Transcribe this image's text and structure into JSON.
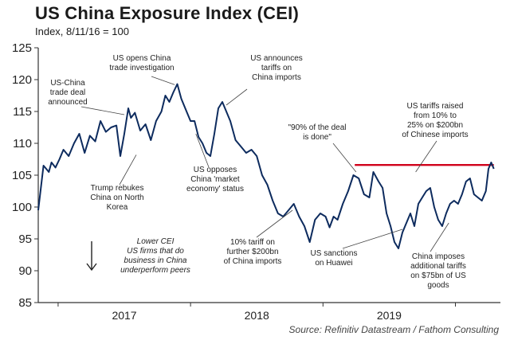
{
  "title": "US China Exposure Index (CEI)",
  "subtitle": "Index, 8/11/16 = 100",
  "source": "Source: Refinitiv Datastream / Fathom Consulting",
  "colors": {
    "series": "#0d2b5e",
    "threshold": "#d0021b",
    "axis": "#333333",
    "text": "#1a1a1a"
  },
  "chart_data": {
    "type": "line",
    "title": "US China Exposure Index (CEI)",
    "ylabel": "Index, 8/11/16 = 100",
    "xlabel": "",
    "ylim": [
      85,
      125
    ],
    "yticks": [
      85,
      90,
      95,
      100,
      105,
      110,
      115,
      120,
      125
    ],
    "xlim": [
      2016.35,
      2019.84
    ],
    "xticks": [
      {
        "label": "2017",
        "x": 2017.0
      },
      {
        "label": "2018",
        "x": 2018.0
      },
      {
        "label": "2019",
        "x": 2019.0
      }
    ],
    "grid": false,
    "series": [
      {
        "name": "CEI",
        "x": [
          2016.35,
          2016.37,
          2016.39,
          2016.41,
          2016.43,
          2016.45,
          2016.48,
          2016.51,
          2016.54,
          2016.58,
          2016.62,
          2016.66,
          2016.7,
          2016.74,
          2016.78,
          2016.82,
          2016.86,
          2016.9,
          2016.94,
          2016.97,
          2017.0,
          2017.03,
          2017.05,
          2017.08,
          2017.12,
          2017.16,
          2017.2,
          2017.24,
          2017.28,
          2017.31,
          2017.34,
          2017.37,
          2017.4,
          2017.43,
          2017.47,
          2017.5,
          2017.53,
          2017.56,
          2017.59,
          2017.62,
          2017.65,
          2017.68,
          2017.71,
          2017.74,
          2017.77,
          2017.8,
          2017.84,
          2017.88,
          2017.92,
          2017.96,
          2018.0,
          2018.04,
          2018.08,
          2018.12,
          2018.16,
          2018.2,
          2018.24,
          2018.28,
          2018.32,
          2018.36,
          2018.4,
          2018.44,
          2018.48,
          2018.52,
          2018.55,
          2018.58,
          2018.61,
          2018.65,
          2018.69,
          2018.73,
          2018.77,
          2018.81,
          2018.85,
          2018.88,
          2018.92,
          2018.95,
          2018.98,
          2019.01,
          2019.04,
          2019.07,
          2019.1,
          2019.13,
          2019.16,
          2019.19,
          2019.22,
          2019.25,
          2019.28,
          2019.31,
          2019.34,
          2019.37,
          2019.4,
          2019.43,
          2019.46,
          2019.49,
          2019.52,
          2019.55,
          2019.58,
          2019.61,
          2019.64,
          2019.67,
          2019.7,
          2019.73,
          2019.75,
          2019.77,
          2019.79
        ],
        "values": [
          99.5,
          103.0,
          106.5,
          106.0,
          105.5,
          107.0,
          106.2,
          107.5,
          109.0,
          108.0,
          110.0,
          111.5,
          108.5,
          111.2,
          110.3,
          113.5,
          111.8,
          112.5,
          112.8,
          108.0,
          111.5,
          115.5,
          114.0,
          114.8,
          112.0,
          113.0,
          110.5,
          113.5,
          115.0,
          117.5,
          116.5,
          118.0,
          119.3,
          117.0,
          115.0,
          113.5,
          113.5,
          111.0,
          110.0,
          108.5,
          108.0,
          111.5,
          115.5,
          116.5,
          115.0,
          113.5,
          110.5,
          109.5,
          108.5,
          109.0,
          108.0,
          105.0,
          103.5,
          101.0,
          99.0,
          98.5,
          99.5,
          100.5,
          98.5,
          97.0,
          94.5,
          98.0,
          99.0,
          98.5,
          96.8,
          98.5,
          98.0,
          100.5,
          102.5,
          105.0,
          104.5,
          102.0,
          101.5,
          105.5,
          104.0,
          103.0,
          99.0,
          97.0,
          94.5,
          93.5,
          96.0,
          97.5,
          99.0,
          97.0,
          100.5,
          101.5,
          102.5,
          103.0,
          100.0,
          98.0,
          97.0,
          99.0,
          100.5,
          101.0,
          100.5,
          102.0,
          104.0,
          104.5,
          102.0,
          101.5,
          101.0,
          102.5,
          106.0,
          107.0,
          106.0
        ]
      }
    ],
    "reference_line": {
      "value": 106.6,
      "x_start": 2018.74,
      "x_end": 2019.79
    },
    "annotations": [
      {
        "lines": [
          "US-China",
          "trade deal",
          "announced"
        ],
        "x": 2017.0,
        "y": 114.5
      },
      {
        "lines": [
          "US opens China",
          "trade investigation"
        ],
        "x": 2017.38,
        "y": 119.2
      },
      {
        "lines": [
          "US announces",
          "tariffs on",
          "China imports"
        ],
        "x": 2017.77,
        "y": 116.0
      },
      {
        "lines": [
          "Trump rebukes",
          "China on North",
          "Korea"
        ],
        "x": 2017.09,
        "y": 108.2
      },
      {
        "lines": [
          "US opposes",
          "China 'market",
          "economy' status"
        ],
        "x": 2017.54,
        "y": 111.5
      },
      {
        "lines": [
          "\"90% of the deal",
          "is done\""
        ],
        "x": 2018.75,
        "y": 105.5
      },
      {
        "lines": [
          "US tariffs raised",
          "from 10% to",
          "25% on $200bn",
          "of Chinese imports"
        ],
        "x": 2019.2,
        "y": 105.5
      },
      {
        "lines": [
          "10% tariff on",
          "further $200bn",
          "of China imports"
        ],
        "x": 2018.27,
        "y": 99.5
      },
      {
        "lines": [
          "US sanctions",
          "on Huawei"
        ],
        "x": 2019.1,
        "y": 96.5
      },
      {
        "lines": [
          "China imposes",
          "additional tariffs",
          "on $75bn of US",
          "goods"
        ],
        "x": 2019.45,
        "y": 97.5
      }
    ],
    "note": {
      "lines": [
        "Lower CEI",
        "US firms that do",
        "business in China",
        "underperform peers"
      ]
    }
  }
}
